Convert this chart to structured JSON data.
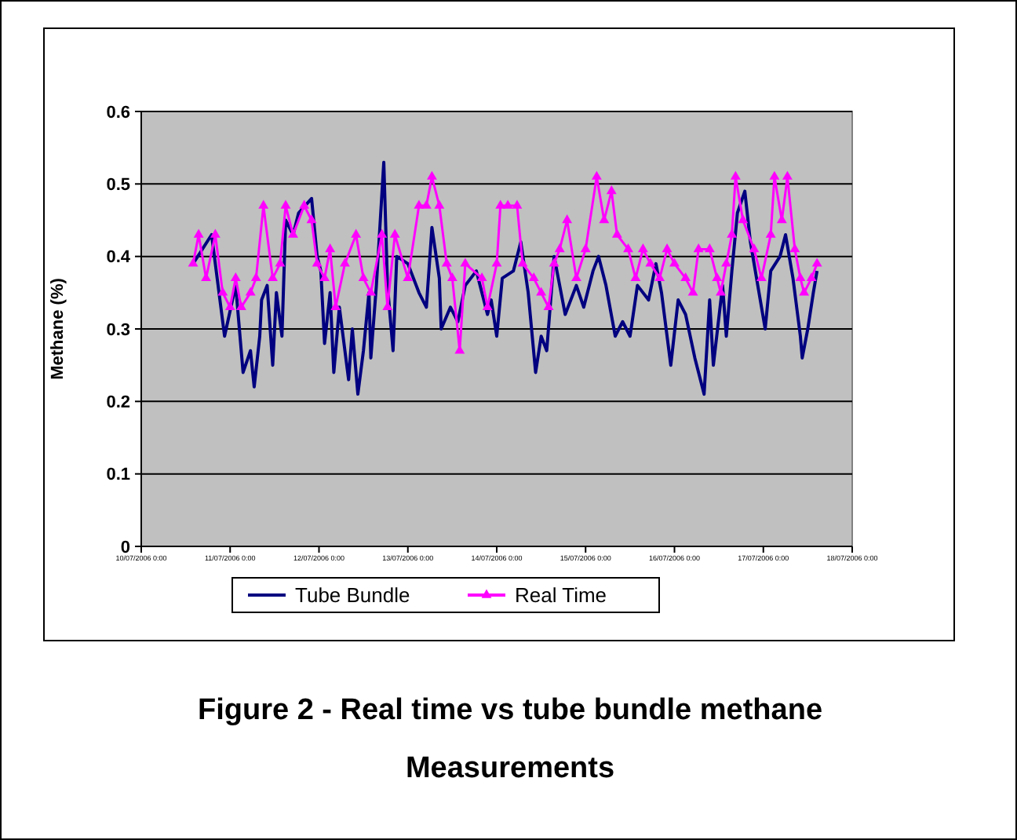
{
  "chart_data": {
    "type": "line",
    "title": "Figure 2 - Real time vs tube bundle methane Measurements",
    "ylabel": "Methane (%)",
    "xlim": [
      "2006-07-10T00:00",
      "2006-07-18T00:00"
    ],
    "xticks": [
      {
        "value": "2006-07-10T00:00",
        "label": "10/07/2006 0:00"
      },
      {
        "value": "2006-07-11T00:00",
        "label": "11/07/2006 0:00"
      },
      {
        "value": "2006-07-12T00:00",
        "label": "12/07/2006 0:00"
      },
      {
        "value": "2006-07-13T00:00",
        "label": "13/07/2006 0:00"
      },
      {
        "value": "2006-07-14T00:00",
        "label": "14/07/2006 0:00"
      },
      {
        "value": "2006-07-15T00:00",
        "label": "15/07/2006 0:00"
      },
      {
        "value": "2006-07-16T00:00",
        "label": "16/07/2006 0:00"
      },
      {
        "value": "2006-07-17T00:00",
        "label": "17/07/2006 0:00"
      },
      {
        "value": "2006-07-18T00:00",
        "label": "18/07/2006 0:00"
      }
    ],
    "ylim": [
      0,
      0.6
    ],
    "yticks": [
      0,
      0.1,
      0.2,
      0.3,
      0.4,
      0.5,
      0.6
    ],
    "grid": "y",
    "legend": "bottom",
    "series": [
      {
        "name": "Tube Bundle",
        "color": "#000080",
        "marker": "none",
        "x": [
          "2006-07-10T14:00",
          "2006-07-10T19:00",
          "2006-07-10T22:30",
          "2006-07-11T01:30",
          "2006-07-11T03:30",
          "2006-07-11T05:30",
          "2006-07-11T06:30",
          "2006-07-11T08:00",
          "2006-07-11T08:30",
          "2006-07-11T10:00",
          "2006-07-11T11:30",
          "2006-07-11T12:30",
          "2006-07-11T14:00",
          "2006-07-11T15:00",
          "2006-07-11T17:00",
          "2006-07-11T18:30",
          "2006-07-11T22:00",
          "2006-07-11T23:30",
          "2006-07-12T00:30",
          "2006-07-12T01:30",
          "2006-07-12T03:00",
          "2006-07-12T04:00",
          "2006-07-12T05:30",
          "2006-07-12T08:00",
          "2006-07-12T09:00",
          "2006-07-12T10:30",
          "2006-07-12T12:00",
          "2006-07-12T13:30",
          "2006-07-12T14:00",
          "2006-07-12T15:30",
          "2006-07-12T17:30",
          "2006-07-12T18:30",
          "2006-07-12T20:00",
          "2006-07-12T21:00",
          "2006-07-13T00:00",
          "2006-07-13T03:00",
          "2006-07-13T05:00",
          "2006-07-13T06:30",
          "2006-07-13T08:30",
          "2006-07-13T09:00",
          "2006-07-13T11:30",
          "2006-07-13T13:30",
          "2006-07-13T15:30",
          "2006-07-13T18:30",
          "2006-07-13T21:30",
          "2006-07-13T22:30",
          "2006-07-14T00:00",
          "2006-07-14T01:30",
          "2006-07-14T04:30",
          "2006-07-14T06:30",
          "2006-07-14T08:30",
          "2006-07-14T10:30",
          "2006-07-14T12:00",
          "2006-07-14T13:30",
          "2006-07-14T15:30",
          "2006-07-14T18:30",
          "2006-07-14T21:30",
          "2006-07-14T23:30",
          "2006-07-15T02:00",
          "2006-07-15T03:30",
          "2006-07-15T05:30",
          "2006-07-15T08:00",
          "2006-07-15T10:00",
          "2006-07-15T12:00",
          "2006-07-15T14:00",
          "2006-07-15T17:00",
          "2006-07-15T19:00",
          "2006-07-15T20:30",
          "2006-07-15T23:00",
          "2006-07-16T01:00",
          "2006-07-16T03:00",
          "2006-07-16T05:30",
          "2006-07-16T08:00",
          "2006-07-16T09:30",
          "2006-07-16T10:30",
          "2006-07-16T13:00",
          "2006-07-16T14:00",
          "2006-07-16T15:30",
          "2006-07-16T17:00",
          "2006-07-16T19:00",
          "2006-07-16T20:30",
          "2006-07-16T22:30",
          "2006-07-17T00:30",
          "2006-07-17T02:00",
          "2006-07-17T04:30",
          "2006-07-17T06:00",
          "2006-07-17T08:00",
          "2006-07-17T10:00",
          "2006-07-17T10:30",
          "2006-07-17T12:00",
          "2006-07-17T13:30",
          "2006-07-17T14:30"
        ],
        "values": [
          0.39,
          0.43,
          0.29,
          0.36,
          0.24,
          0.27,
          0.22,
          0.29,
          0.34,
          0.36,
          0.25,
          0.35,
          0.29,
          0.45,
          0.43,
          0.46,
          0.48,
          0.4,
          0.38,
          0.28,
          0.35,
          0.24,
          0.33,
          0.23,
          0.3,
          0.21,
          0.27,
          0.35,
          0.26,
          0.36,
          0.53,
          0.36,
          0.27,
          0.4,
          0.39,
          0.35,
          0.33,
          0.44,
          0.37,
          0.3,
          0.33,
          0.31,
          0.36,
          0.38,
          0.32,
          0.34,
          0.29,
          0.37,
          0.38,
          0.42,
          0.35,
          0.24,
          0.29,
          0.27,
          0.4,
          0.32,
          0.36,
          0.33,
          0.38,
          0.4,
          0.36,
          0.29,
          0.31,
          0.29,
          0.36,
          0.34,
          0.39,
          0.35,
          0.25,
          0.34,
          0.32,
          0.26,
          0.21,
          0.34,
          0.25,
          0.36,
          0.29,
          0.38,
          0.46,
          0.49,
          0.42,
          0.36,
          0.3,
          0.38,
          0.4,
          0.43,
          0.37,
          0.29,
          0.26,
          0.3,
          0.35,
          0.38
        ]
      },
      {
        "name": "Real Time",
        "color": "#ff00ff",
        "marker": "triangle",
        "x": [
          "2006-07-10T14:00",
          "2006-07-10T15:30",
          "2006-07-10T17:30",
          "2006-07-10T20:00",
          "2006-07-10T22:00",
          "2006-07-11T00:00",
          "2006-07-11T01:30",
          "2006-07-11T03:00",
          "2006-07-11T05:30",
          "2006-07-11T07:00",
          "2006-07-11T09:00",
          "2006-07-11T11:30",
          "2006-07-11T13:30",
          "2006-07-11T15:00",
          "2006-07-11T17:00",
          "2006-07-11T20:00",
          "2006-07-11T22:00",
          "2006-07-11T23:30",
          "2006-07-12T01:30",
          "2006-07-12T03:00",
          "2006-07-12T04:30",
          "2006-07-12T07:00",
          "2006-07-12T10:00",
          "2006-07-12T12:00",
          "2006-07-12T14:00",
          "2006-07-12T17:00",
          "2006-07-12T18:30",
          "2006-07-12T20:30",
          "2006-07-13T00:00",
          "2006-07-13T03:00",
          "2006-07-13T05:00",
          "2006-07-13T06:30",
          "2006-07-13T08:30",
          "2006-07-13T10:30",
          "2006-07-13T12:00",
          "2006-07-13T14:00",
          "2006-07-13T15:30",
          "2006-07-13T20:00",
          "2006-07-13T21:30",
          "2006-07-14T00:00",
          "2006-07-14T01:00",
          "2006-07-14T03:00",
          "2006-07-14T05:30",
          "2006-07-14T07:00",
          "2006-07-14T10:00",
          "2006-07-14T12:00",
          "2006-07-14T14:00",
          "2006-07-14T15:30",
          "2006-07-14T17:00",
          "2006-07-14T19:00",
          "2006-07-14T21:30",
          "2006-07-15T00:00",
          "2006-07-15T03:00",
          "2006-07-15T05:00",
          "2006-07-15T07:00",
          "2006-07-15T08:30",
          "2006-07-15T11:30",
          "2006-07-15T13:30",
          "2006-07-15T15:30",
          "2006-07-15T17:30",
          "2006-07-15T20:00",
          "2006-07-15T22:00",
          "2006-07-16T00:00",
          "2006-07-16T03:00",
          "2006-07-16T05:00",
          "2006-07-16T06:30",
          "2006-07-16T09:30",
          "2006-07-16T11:30",
          "2006-07-16T12:30",
          "2006-07-16T14:00",
          "2006-07-16T15:30",
          "2006-07-16T16:30",
          "2006-07-16T18:30",
          "2006-07-16T21:30",
          "2006-07-16T23:30",
          "2006-07-17T02:00",
          "2006-07-17T03:00",
          "2006-07-17T05:00",
          "2006-07-17T06:30",
          "2006-07-17T08:30",
          "2006-07-17T10:00",
          "2006-07-17T11:00",
          "2006-07-17T13:00",
          "2006-07-17T14:30"
        ],
        "values": [
          0.39,
          0.43,
          0.37,
          0.43,
          0.35,
          0.33,
          0.37,
          0.33,
          0.35,
          0.37,
          0.47,
          0.37,
          0.39,
          0.47,
          0.43,
          0.47,
          0.45,
          0.39,
          0.37,
          0.41,
          0.33,
          0.39,
          0.43,
          0.37,
          0.35,
          0.43,
          0.33,
          0.43,
          0.37,
          0.47,
          0.47,
          0.51,
          0.47,
          0.39,
          0.37,
          0.27,
          0.39,
          0.37,
          0.33,
          0.39,
          0.47,
          0.47,
          0.47,
          0.39,
          0.37,
          0.35,
          0.33,
          0.39,
          0.41,
          0.45,
          0.37,
          0.41,
          0.51,
          0.45,
          0.49,
          0.43,
          0.41,
          0.37,
          0.41,
          0.39,
          0.37,
          0.41,
          0.39,
          0.37,
          0.35,
          0.41,
          0.41,
          0.37,
          0.35,
          0.39,
          0.43,
          0.51,
          0.45,
          0.41,
          0.37,
          0.43,
          0.51,
          0.45,
          0.51,
          0.41,
          0.37,
          0.35,
          0.37,
          0.39
        ]
      }
    ]
  }
}
